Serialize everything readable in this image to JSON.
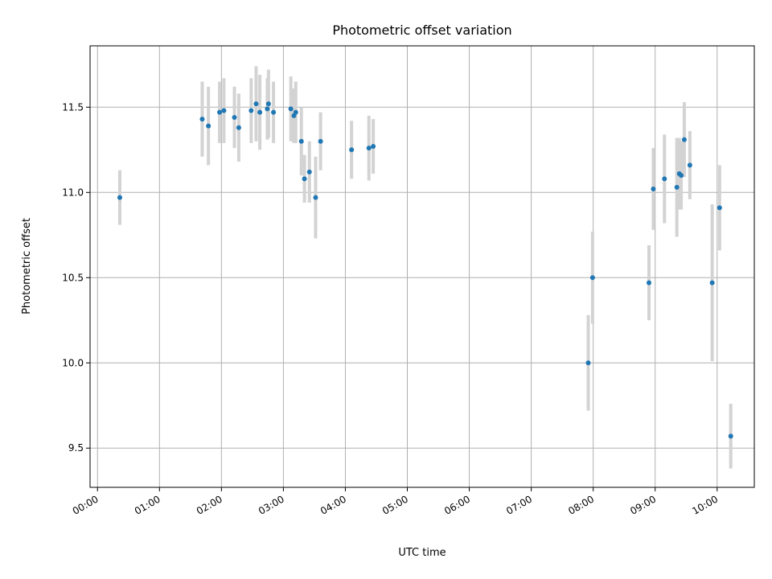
{
  "chart_data": {
    "type": "scatter",
    "title": "Photometric offset variation",
    "xlabel": "UTC time",
    "ylabel": "Photometric offset",
    "x_unit": "hours (UTC)",
    "xlim": [
      -0.12,
      10.6
    ],
    "ylim": [
      9.27,
      11.86
    ],
    "grid": true,
    "x_ticks": [
      {
        "value": 0,
        "label": "00:00"
      },
      {
        "value": 1,
        "label": "01:00"
      },
      {
        "value": 2,
        "label": "02:00"
      },
      {
        "value": 3,
        "label": "03:00"
      },
      {
        "value": 4,
        "label": "04:00"
      },
      {
        "value": 5,
        "label": "05:00"
      },
      {
        "value": 6,
        "label": "06:00"
      },
      {
        "value": 7,
        "label": "07:00"
      },
      {
        "value": 8,
        "label": "08:00"
      },
      {
        "value": 9,
        "label": "09:00"
      },
      {
        "value": 10,
        "label": "10:00"
      }
    ],
    "y_ticks": [
      {
        "value": 9.5,
        "label": "9.5"
      },
      {
        "value": 10.0,
        "label": "10.0"
      },
      {
        "value": 10.5,
        "label": "10.5"
      },
      {
        "value": 11.0,
        "label": "11.0"
      },
      {
        "value": 11.5,
        "label": "11.5"
      }
    ],
    "colors": {
      "point": "#1f77b4",
      "errorbar": "#d3d3d3",
      "grid": "#b0b0b0",
      "axis": "#000000"
    },
    "series": [
      {
        "name": "photometric offset",
        "points": [
          {
            "x": 0.36,
            "y": 10.97,
            "err": 0.16
          },
          {
            "x": 1.69,
            "y": 11.43,
            "err": 0.22
          },
          {
            "x": 1.79,
            "y": 11.39,
            "err": 0.23
          },
          {
            "x": 1.97,
            "y": 11.47,
            "err": 0.18
          },
          {
            "x": 2.04,
            "y": 11.48,
            "err": 0.19
          },
          {
            "x": 2.21,
            "y": 11.44,
            "err": 0.18
          },
          {
            "x": 2.28,
            "y": 11.38,
            "err": 0.2
          },
          {
            "x": 2.48,
            "y": 11.48,
            "err": 0.19
          },
          {
            "x": 2.56,
            "y": 11.52,
            "err": 0.22
          },
          {
            "x": 2.62,
            "y": 11.47,
            "err": 0.22
          },
          {
            "x": 2.74,
            "y": 11.49,
            "err": 0.18
          },
          {
            "x": 2.76,
            "y": 11.52,
            "err": 0.2
          },
          {
            "x": 2.84,
            "y": 11.47,
            "err": 0.18
          },
          {
            "x": 3.12,
            "y": 11.49,
            "err": 0.19
          },
          {
            "x": 3.17,
            "y": 11.45,
            "err": 0.16
          },
          {
            "x": 3.2,
            "y": 11.47,
            "err": 0.18
          },
          {
            "x": 3.29,
            "y": 11.3,
            "err": 0.2
          },
          {
            "x": 3.34,
            "y": 11.08,
            "err": 0.14
          },
          {
            "x": 3.42,
            "y": 11.12,
            "err": 0.18
          },
          {
            "x": 3.52,
            "y": 10.97,
            "err": 0.24
          },
          {
            "x": 3.6,
            "y": 11.3,
            "err": 0.17
          },
          {
            "x": 4.1,
            "y": 11.25,
            "err": 0.17
          },
          {
            "x": 4.38,
            "y": 11.26,
            "err": 0.19
          },
          {
            "x": 4.45,
            "y": 11.27,
            "err": 0.16
          },
          {
            "x": 7.92,
            "y": 10.0,
            "err": 0.28
          },
          {
            "x": 7.99,
            "y": 10.5,
            "err": 0.27
          },
          {
            "x": 8.9,
            "y": 10.47,
            "err": 0.22
          },
          {
            "x": 8.97,
            "y": 11.02,
            "err": 0.24
          },
          {
            "x": 9.15,
            "y": 11.08,
            "err": 0.26
          },
          {
            "x": 9.35,
            "y": 11.03,
            "err": 0.29
          },
          {
            "x": 9.39,
            "y": 11.11,
            "err": 0.21
          },
          {
            "x": 9.42,
            "y": 11.1,
            "err": 0.2
          },
          {
            "x": 9.47,
            "y": 11.31,
            "err": 0.22
          },
          {
            "x": 9.56,
            "y": 11.16,
            "err": 0.2
          },
          {
            "x": 9.92,
            "y": 10.47,
            "err": 0.46
          },
          {
            "x": 10.04,
            "y": 10.91,
            "err": 0.25
          },
          {
            "x": 10.22,
            "y": 9.57,
            "err": 0.19
          }
        ]
      }
    ]
  }
}
